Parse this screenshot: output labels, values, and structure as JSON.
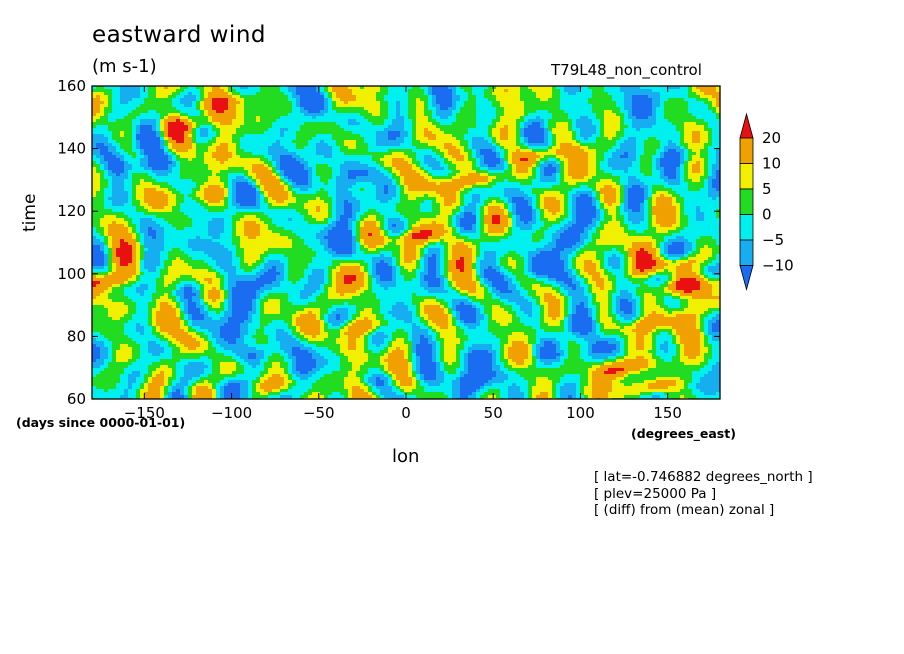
{
  "figure": {
    "title": "eastward wind",
    "units": "(m s-1)",
    "run_label": "T79L48_non_control",
    "notes": [
      "[ lat=-0.746882 degrees_north ]",
      "[ plev=25000 Pa ]",
      "[ (diff) from (mean) zonal ]"
    ]
  },
  "chart_data": {
    "type": "heatmap",
    "title": "eastward wind",
    "subtitle": "(m s-1)",
    "xlabel": "lon",
    "x_unit": "(degrees_east)",
    "ylabel": "time",
    "y_unit": "(days since 0000-01-01)",
    "xlim": [
      -180,
      180
    ],
    "ylim": [
      60,
      160
    ],
    "x_ticks": [
      -150,
      -100,
      -50,
      0,
      50,
      100,
      150
    ],
    "y_ticks": [
      60,
      80,
      100,
      120,
      140,
      160
    ],
    "colorbar": {
      "levels": [
        -10,
        -5,
        0,
        5,
        10,
        20
      ],
      "labels": [
        "20",
        "10",
        "5",
        "0",
        "-5",
        "-10"
      ],
      "colors": [
        "#1a6cf0",
        "#16aef0",
        "#00f0f0",
        "#22dc22",
        "#f0f000",
        "#f0a000",
        "#e81010"
      ],
      "extend": "both"
    },
    "features": [
      {
        "lon": 40,
        "time": 130,
        "value": 20
      },
      {
        "lon": 80,
        "time": 138,
        "value": 18
      },
      {
        "lon": 5,
        "time": 112,
        "value": 18
      },
      {
        "lon": 160,
        "time": 96,
        "value": 20
      },
      {
        "lon": 150,
        "time": 103,
        "value": 18
      },
      {
        "lon": 125,
        "time": 70,
        "value": 20
      },
      {
        "lon": 140,
        "time": 64,
        "value": 16
      },
      {
        "lon": -125,
        "time": 148,
        "value": 18
      },
      {
        "lon": -110,
        "time": 154,
        "value": 14
      },
      {
        "lon": -170,
        "time": 98,
        "value": 16
      },
      {
        "lon": -25,
        "time": 83,
        "value": 12
      },
      {
        "lon": -70,
        "time": 65,
        "value": 12
      },
      {
        "lon": 140,
        "time": 84,
        "value": 12
      },
      {
        "lon": -120,
        "time": 125,
        "value": 10
      },
      {
        "lon": -150,
        "time": 135,
        "value": -9
      },
      {
        "lon": 160,
        "time": 138,
        "value": -9
      },
      {
        "lon": -120,
        "time": 95,
        "value": -9
      },
      {
        "lon": 0,
        "time": 68,
        "value": -9
      },
      {
        "lon": 40,
        "time": 66,
        "value": -9
      },
      {
        "lon": -20,
        "time": 132,
        "value": -8
      },
      {
        "lon": 100,
        "time": 75,
        "value": -8
      },
      {
        "lon": -90,
        "time": 74,
        "value": -8
      },
      {
        "lon": 60,
        "time": 100,
        "value": -7
      }
    ]
  }
}
